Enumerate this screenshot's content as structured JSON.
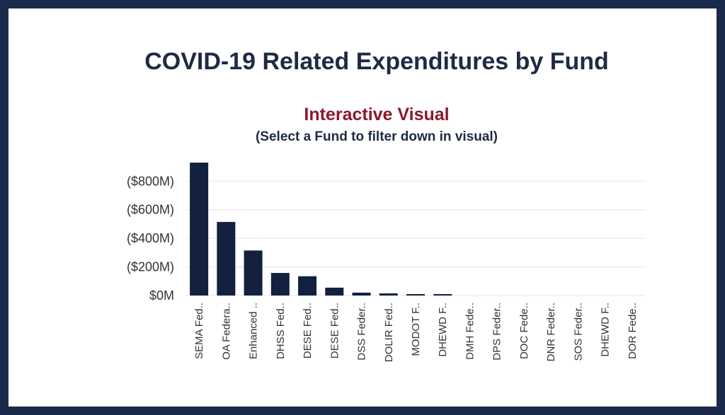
{
  "title": "COVID-19 Related Expenditures by Fund",
  "subtitle": "Interactive Visual",
  "instruction": "(Select a Fund to filter down in visual)",
  "colors": {
    "bar": "#13213f",
    "grid": "#e6e6e6",
    "frame": "#1b2a4a"
  },
  "chart_data": {
    "type": "bar",
    "title": "COVID-19 Related Expenditures by Fund",
    "xlabel": "",
    "ylabel": "",
    "ylim": [
      0,
      930
    ],
    "yticks": [
      0,
      200,
      400,
      600,
      800
    ],
    "ytick_labels": [
      "$0M",
      "($200M)",
      "($400M)",
      "($600M)",
      "($800M)"
    ],
    "grid": true,
    "categories": [
      "SEMA Fed..",
      "OA Federa..",
      "Enhanced ..",
      "DHSS Fed..",
      "DESE Fed..",
      "DESE Fed..",
      "DSS Feder..",
      "DOLIR Fed..",
      "MODOT F..",
      "DHEWD F..",
      "DMH Fede..",
      "DPS Feder..",
      "DOC Fede..",
      "DNR Feder..",
      "SOS Feder..",
      "DHEWD F..",
      "DOR Fede.."
    ],
    "values": [
      930,
      515,
      315,
      158,
      135,
      55,
      20,
      15,
      10,
      8,
      0,
      0,
      0,
      0,
      0,
      0,
      0
    ]
  }
}
